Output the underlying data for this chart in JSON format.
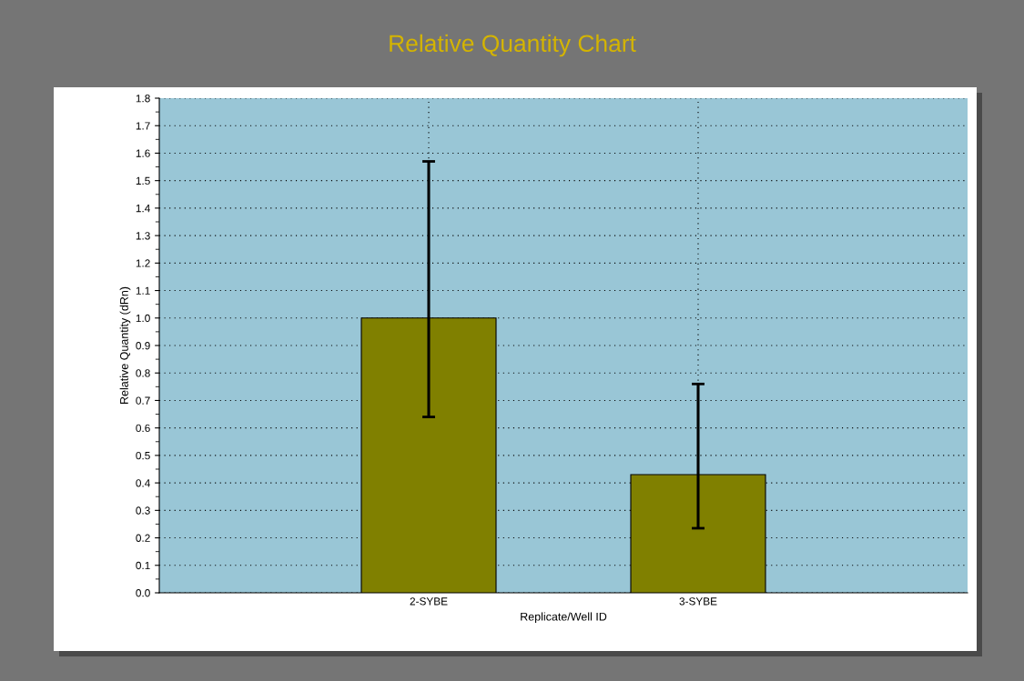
{
  "chart_data": {
    "type": "bar",
    "title": "Relative Quantity Chart",
    "xlabel": "Replicate/Well ID",
    "ylabel": "Relative Quantity (dRn)",
    "categories": [
      "2-SYBE",
      "3-SYBE"
    ],
    "values": [
      1.0,
      0.43
    ],
    "errors": [
      [
        0.64,
        1.57
      ],
      [
        0.235,
        0.76
      ]
    ],
    "color": "#808000",
    "ylim": [
      0,
      1.8
    ],
    "yticks": [
      {
        "value": 0,
        "label": "0.0"
      },
      {
        "value": 0.1,
        "label": "0.1"
      },
      {
        "value": 0.2,
        "label": "0.2"
      },
      {
        "value": 0.3,
        "label": "0.3"
      },
      {
        "value": 0.4,
        "label": "0.4"
      },
      {
        "value": 0.5,
        "label": "0.5"
      },
      {
        "value": 0.6,
        "label": "0.6"
      },
      {
        "value": 0.7,
        "label": "0.7"
      },
      {
        "value": 0.8,
        "label": "0.8"
      },
      {
        "value": 0.9,
        "label": "0.9"
      },
      {
        "value": 1.0,
        "label": "1.0"
      },
      {
        "value": 1.1,
        "label": "1.1"
      },
      {
        "value": 1.2,
        "label": "1.2"
      },
      {
        "value": 1.3,
        "label": "1.3"
      },
      {
        "value": 1.4,
        "label": "1.4"
      },
      {
        "value": 1.5,
        "label": "1.5"
      },
      {
        "value": 1.6,
        "label": "1.6"
      },
      {
        "value": 1.7,
        "label": "1.7"
      },
      {
        "value": 1.8,
        "label": "1.8"
      }
    ],
    "grid": true
  }
}
